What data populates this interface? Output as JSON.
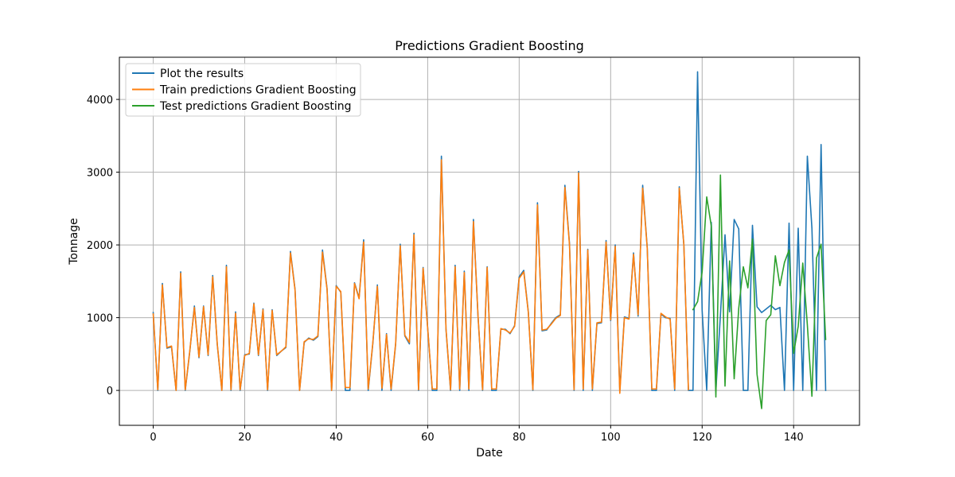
{
  "chart_data": {
    "type": "line",
    "title": "Predictions Gradient Boosting",
    "xlabel": "Date",
    "ylabel": "Tonnage",
    "xlim": [
      -7.4,
      154.4
    ],
    "ylim": [
      -480,
      4580
    ],
    "xticks": [
      0,
      20,
      40,
      60,
      80,
      100,
      120,
      140
    ],
    "yticks": [
      0,
      1000,
      2000,
      3000,
      4000
    ],
    "grid": true,
    "legend_position": "top-left",
    "series": [
      {
        "name": "Plot the results",
        "color": "#1f77b4",
        "x_start": 0,
        "values": [
          1070,
          0,
          1470,
          580,
          600,
          0,
          1630,
          0,
          540,
          1160,
          450,
          1160,
          480,
          1580,
          630,
          0,
          1720,
          0,
          1080,
          0,
          490,
          500,
          1200,
          480,
          1120,
          0,
          1110,
          480,
          540,
          590,
          1910,
          1390,
          0,
          660,
          720,
          690,
          740,
          1930,
          1400,
          0,
          1440,
          1350,
          0,
          0,
          1480,
          1270,
          2070,
          0,
          640,
          1450,
          0,
          780,
          0,
          640,
          2010,
          750,
          640,
          2160,
          0,
          1690,
          860,
          0,
          0,
          3220,
          840,
          0,
          1720,
          0,
          1640,
          0,
          2350,
          1020,
          0,
          1700,
          0,
          0,
          840,
          840,
          780,
          890,
          1560,
          1650,
          1080,
          0,
          2580,
          820,
          830,
          920,
          1000,
          1040,
          2820,
          2020,
          0,
          3010,
          0,
          1940,
          0,
          920,
          930,
          2060,
          960,
          2000,
          0,
          1010,
          990,
          1890,
          1020,
          2820,
          1960,
          0,
          0,
          1050,
          1000,
          990,
          0,
          2800,
          2000,
          0,
          0,
          4380,
          1100,
          0,
          2310,
          0,
          1040,
          2140,
          1080,
          2350,
          2220,
          0,
          0,
          2270,
          1150,
          1070,
          1120,
          1170,
          1110,
          1140,
          0,
          2300,
          0,
          2230,
          0,
          3220,
          2230,
          0,
          3380,
          0
        ]
      },
      {
        "name": "Train predictions Gradient Boosting",
        "color": "#ff7f0e",
        "x_start": 0,
        "values": [
          1050,
          10,
          1450,
          590,
          610,
          0,
          1610,
          10,
          550,
          1140,
          460,
          1150,
          490,
          1560,
          640,
          0,
          1700,
          10,
          1060,
          10,
          480,
          510,
          1190,
          490,
          1110,
          10,
          1100,
          490,
          540,
          600,
          1890,
          1380,
          0,
          670,
          710,
          700,
          750,
          1900,
          1390,
          0,
          1430,
          1360,
          40,
          40,
          1470,
          1260,
          2040,
          20,
          650,
          1430,
          30,
          770,
          20,
          650,
          1990,
          760,
          660,
          2140,
          10,
          1680,
          850,
          20,
          20,
          3170,
          850,
          10,
          1700,
          20,
          1620,
          20,
          2320,
          1030,
          10,
          1690,
          20,
          20,
          850,
          830,
          790,
          880,
          1540,
          1630,
          1070,
          10,
          2550,
          830,
          840,
          910,
          990,
          1030,
          2790,
          2000,
          10,
          2990,
          20,
          1930,
          20,
          930,
          940,
          2040,
          970,
          1980,
          -40,
          1000,
          980,
          1870,
          1040,
          2780,
          1950,
          20,
          20,
          1060,
          1010,
          980,
          20,
          2780,
          2010,
          10
        ]
      },
      {
        "name": "Test predictions Gradient Boosting",
        "color": "#2ca02c",
        "x_start": 118,
        "values": [
          1110,
          1220,
          1630,
          2660,
          2260,
          -90,
          2960,
          60,
          1780,
          160,
          1130,
          1700,
          1410,
          2080,
          220,
          -250,
          960,
          1040,
          1850,
          1440,
          1760,
          1930,
          510,
          880,
          1750,
          900,
          -80,
          1820,
          2010,
          700
        ]
      }
    ]
  }
}
